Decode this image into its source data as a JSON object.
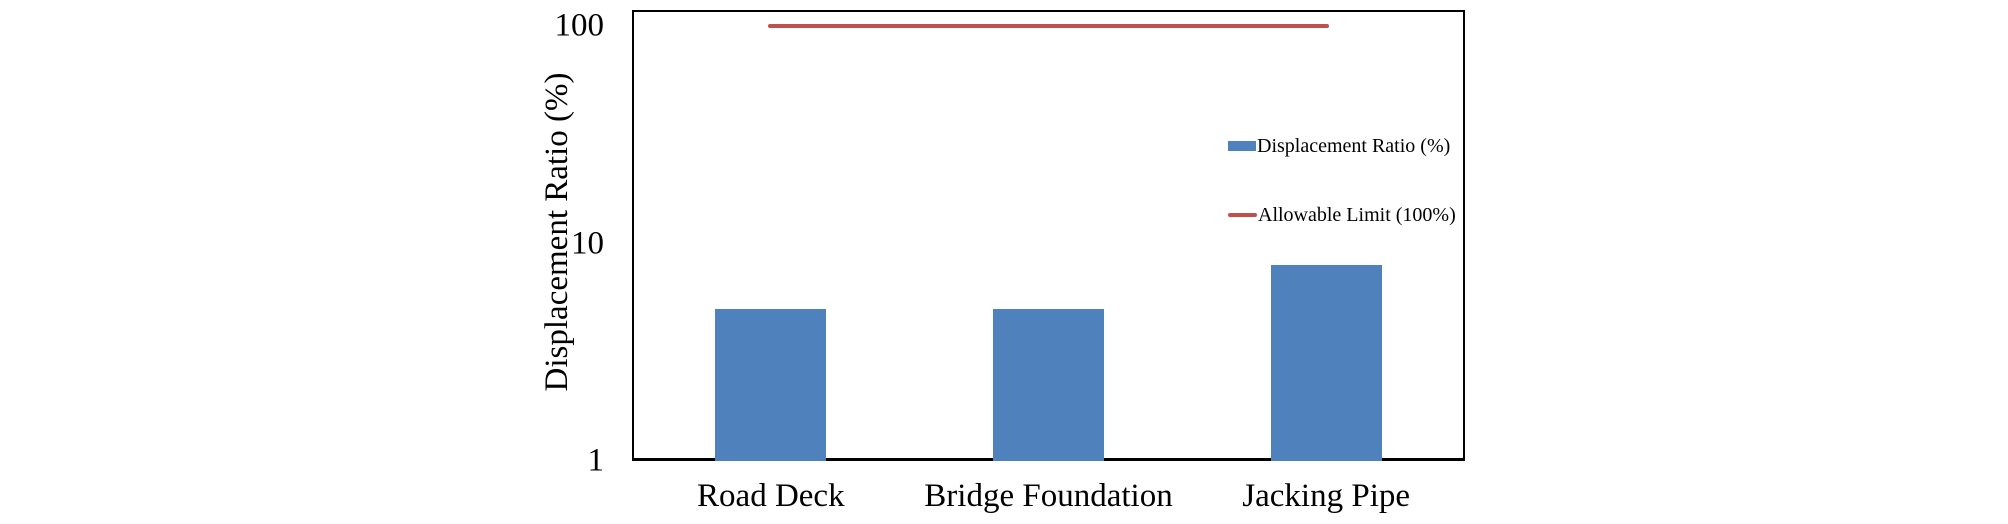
{
  "chart_data": {
    "type": "bar",
    "title": "",
    "categories": [
      "Road Deck",
      "Bridge Foundation",
      "Jacking Pipe"
    ],
    "series": [
      {
        "name": "Displacement Ratio (%)",
        "kind": "bar",
        "values": [
          5,
          5,
          8
        ],
        "color": "#4F81BD"
      },
      {
        "name": "Allowable Limit (100%)",
        "kind": "line",
        "values": [
          100,
          100,
          100
        ],
        "color": "#C0504D"
      }
    ],
    "xlabel": "",
    "ylabel": "Displacement Ratio (%)",
    "yscale": "log",
    "ylim": [
      1,
      119
    ],
    "yticks": [
      "1",
      "10",
      "100"
    ],
    "grid": false,
    "legend_position": "inside-top-right",
    "colors": {
      "bar_fill": "#4F81BD",
      "limit_line": "#C0504D",
      "axis": "#000000",
      "background": "#ffffff"
    }
  },
  "legend": {
    "items": [
      {
        "label": "Displacement Ratio (%)",
        "swatch": "bar-swatch-icon"
      },
      {
        "label": "Allowable Limit (100%)",
        "swatch": "line-swatch-icon"
      }
    ]
  }
}
